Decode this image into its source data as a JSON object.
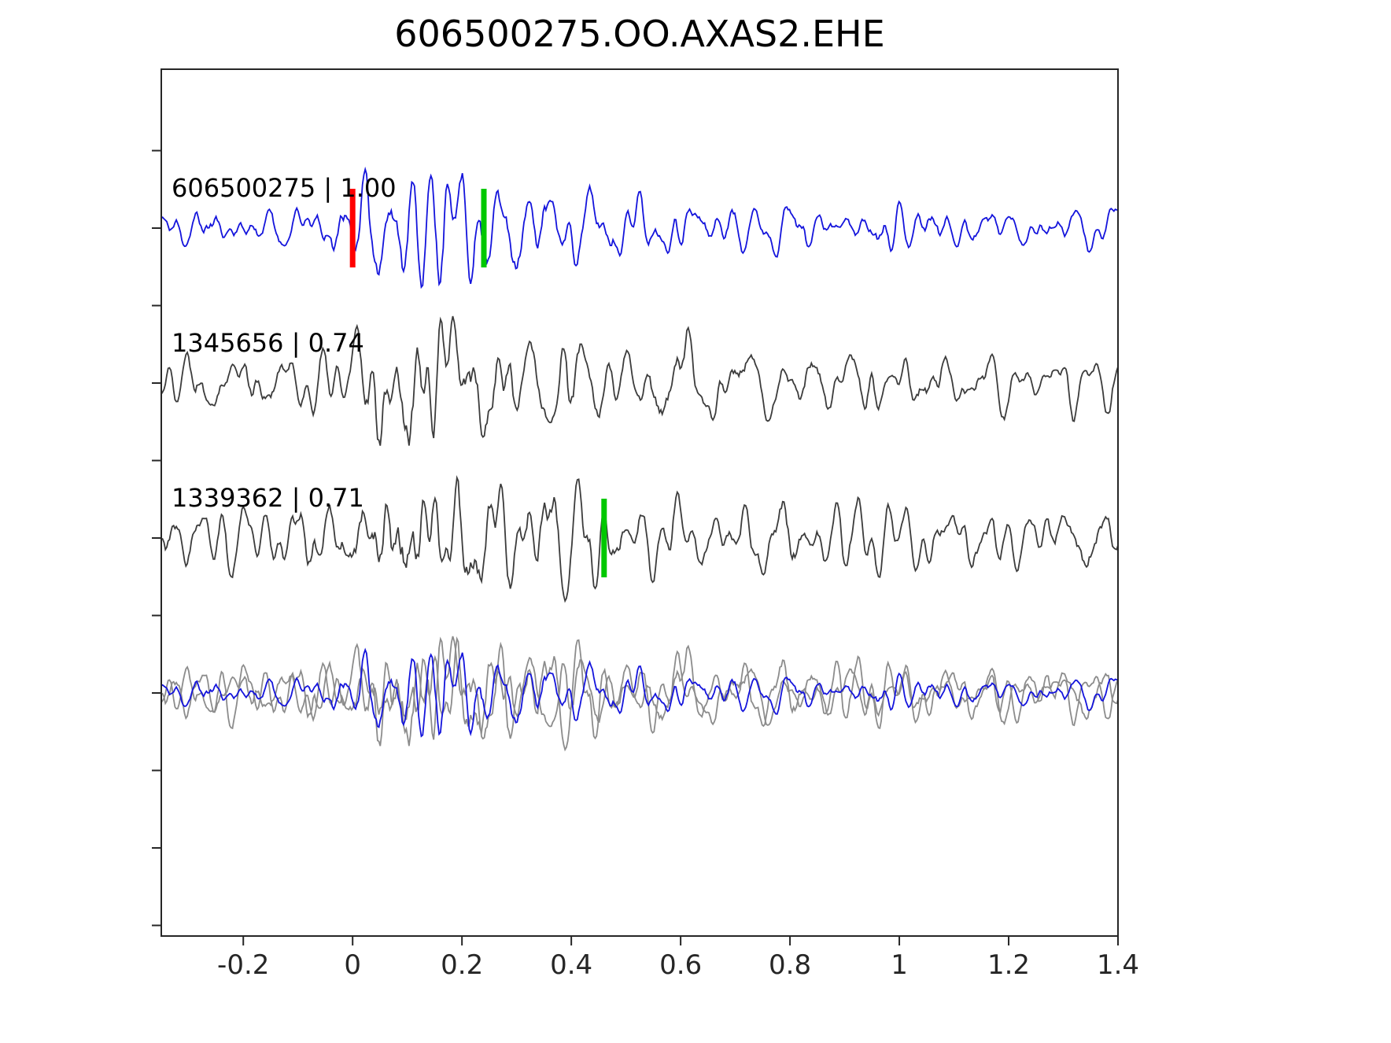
{
  "chart_data": {
    "type": "line",
    "title": "606500275.OO.AXAS2.EHE",
    "xlabel": "",
    "ylabel": "",
    "xlim": [
      -0.35,
      1.4
    ],
    "x_ticks": [
      -0.2,
      0,
      0.2,
      0.4,
      0.6,
      0.8,
      1,
      1.2,
      1.4
    ],
    "x_tick_labels": [
      "-0.2",
      "0",
      "0.2",
      "0.4",
      "0.6",
      "0.8",
      "1",
      "1.2",
      "1.4"
    ],
    "y_tick_labels": [],
    "grid": false,
    "legend": "none",
    "description": "Template-matching waveform comparison: three stacked seismic traces (template in blue, two detections in dark gray) plus a bottom overlay of all aligned traces (gray detections with blue template).",
    "approximation_note": "Waveform sample values are unreadable noise-like seismograms; curves are procedurally regenerated band-limited noise from the seeds below to approximate the visual character. Labels, markers and axes are exact.",
    "traces": [
      {
        "label": "606500275 | 1.00",
        "id": "606500275",
        "correlation": "1.00",
        "color": "#1414dc",
        "row": 0,
        "seed": 11,
        "amplitude": 75,
        "markers": [
          {
            "name": "pick-marker-red",
            "color": "#ff0000",
            "x": 0.0
          },
          {
            "name": "pick-marker-green",
            "color": "#00c800",
            "x": 0.24
          }
        ]
      },
      {
        "label": "1345656 | 0.74",
        "id": "1345656",
        "correlation": "0.74",
        "color": "#3c3c3c",
        "row": 1,
        "seed": 22,
        "amplitude": 85,
        "markers": []
      },
      {
        "label": "1339362 | 0.71",
        "id": "1339362",
        "correlation": "0.71",
        "color": "#3c3c3c",
        "row": 2,
        "seed": 33,
        "amplitude": 80,
        "markers": [
          {
            "name": "pick-marker-green",
            "color": "#00c800",
            "x": 0.46
          }
        ]
      },
      {
        "label": "",
        "id": "overlay",
        "row": 3,
        "overlay": true,
        "components": [
          {
            "ref": 1,
            "color": "#8c8c8c",
            "amplitude": 72
          },
          {
            "ref": 2,
            "color": "#8c8c8c",
            "amplitude": 72
          },
          {
            "ref": 0,
            "color": "#1414dc",
            "amplitude": 55
          }
        ],
        "markers": []
      }
    ],
    "axis_color": "#262626",
    "marker_height_px": 100
  }
}
